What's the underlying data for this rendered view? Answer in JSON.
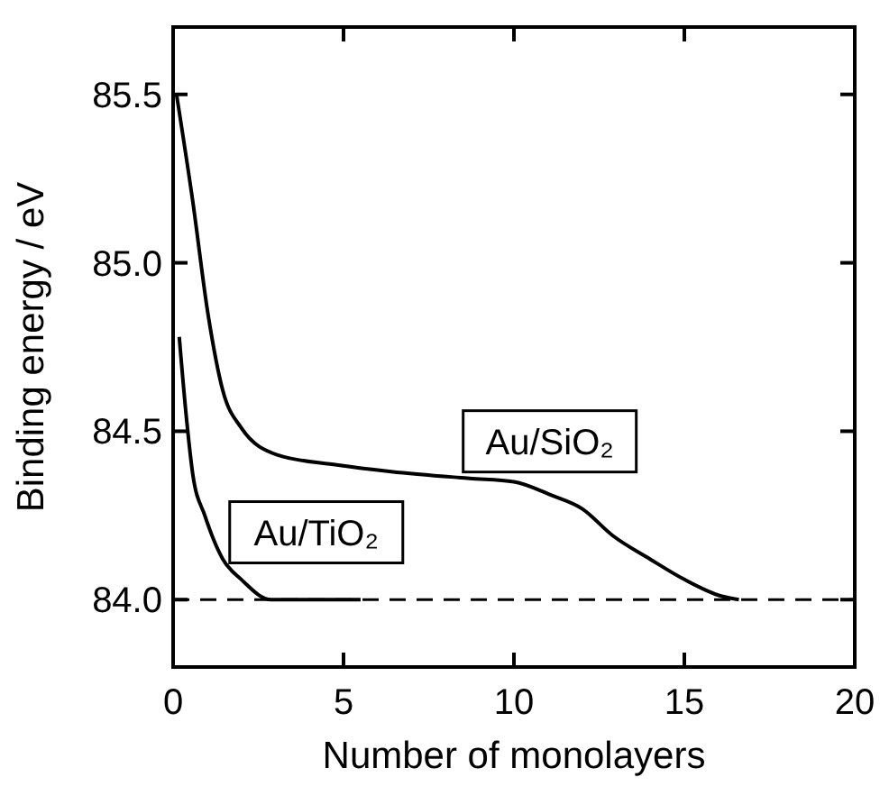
{
  "chart_data": {
    "type": "line",
    "xlabel": "Number of monolayers",
    "ylabel": "Binding energy / eV",
    "xlim": [
      0,
      20
    ],
    "ylim": [
      83.8,
      85.7
    ],
    "xticks": [
      0,
      5,
      10,
      15,
      20
    ],
    "yticks": [
      {
        "value": 84.0,
        "label": "84.0"
      },
      84.5,
      {
        "value": 85.0,
        "label": "85.0"
      },
      85.5
    ],
    "legend": false,
    "grid": false,
    "marker": "none",
    "line_style": "solid",
    "series": [
      {
        "name": "Au/SiO₂",
        "color": "#000000",
        "x": [
          0.1,
          0.58,
          1.02,
          1.46,
          2.0,
          3.05,
          4.8,
          6.4,
          8.7,
          10.0,
          11.1,
          12.0,
          12.9,
          14.0,
          15.0,
          16.1,
          16.6
        ],
        "values": [
          85.5,
          85.18,
          84.85,
          84.62,
          84.51,
          84.43,
          84.4,
          84.38,
          84.36,
          84.35,
          84.31,
          84.27,
          84.19,
          84.12,
          84.06,
          84.01,
          84.0
        ]
      },
      {
        "name": "Au/TiO₂",
        "color": "#000000",
        "x": [
          0.18,
          0.4,
          0.58,
          0.93,
          1.46,
          2.0,
          2.87,
          5.5
        ],
        "values": [
          84.78,
          84.53,
          84.37,
          84.25,
          84.12,
          84.06,
          84.0,
          84.0
        ]
      }
    ],
    "ref_lines": [
      {
        "axis": "y",
        "value": 84.0,
        "line_style": "dashed",
        "color": "#000000"
      }
    ]
  }
}
